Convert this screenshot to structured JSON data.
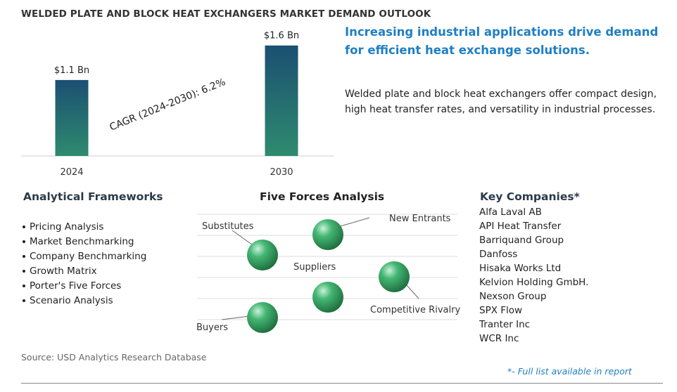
{
  "header": {
    "title": "WELDED PLATE AND BLOCK HEAT EXCHANGERS MARKET DEMAND OUTLOOK"
  },
  "chart_data": {
    "type": "bar",
    "categories": [
      "2024",
      "2030"
    ],
    "values": [
      1.1,
      1.6
    ],
    "value_labels": [
      "$1.1 Bn",
      "$1.6 Bn"
    ],
    "annotation": "CAGR (2024-2030):  6.2%",
    "title": "WELDED PLATE AND BLOCK HEAT EXCHANGERS MARKET DEMAND OUTLOOK",
    "xlabel": "",
    "ylabel": "",
    "grid": false
  },
  "summary": {
    "headline": "Increasing industrial applications drive demand for efficient heat exchange solutions.",
    "description": "Welded plate and block heat exchangers offer compact design, high heat transfer rates, and versatility in industrial processes."
  },
  "analytical_frameworks": {
    "title": "Analytical Frameworks",
    "items": [
      "Pricing Analysis",
      "Market Benchmarking",
      "Company Benchmarking",
      "Growth Matrix",
      "Porter's Five Forces",
      "Scenario Analysis"
    ]
  },
  "five_forces": {
    "title": "Five Forces Analysis",
    "forces": [
      "Substitutes",
      "New Entrants",
      "Suppliers",
      "Competitive Rivalry",
      "Buyers"
    ]
  },
  "key_companies": {
    "title": "Key Companies*",
    "items": [
      "Alfa Laval AB",
      "API Heat Transfer",
      "Barriquand Group",
      "Danfoss",
      "Hisaka Works Ltd",
      "Kelvion Holding GmbH.",
      "Nexson Group",
      "SPX Flow",
      "Tranter Inc",
      "WCR Inc"
    ]
  },
  "footer": {
    "source": "Source: USD Analytics Research Database",
    "footnote": "*- Full list available in report"
  },
  "colors": {
    "accent": "#1f7fc4",
    "bar_top": "#1b4f72",
    "bar_bottom": "#2e8b6e",
    "sphere": "#2e9e5b"
  }
}
